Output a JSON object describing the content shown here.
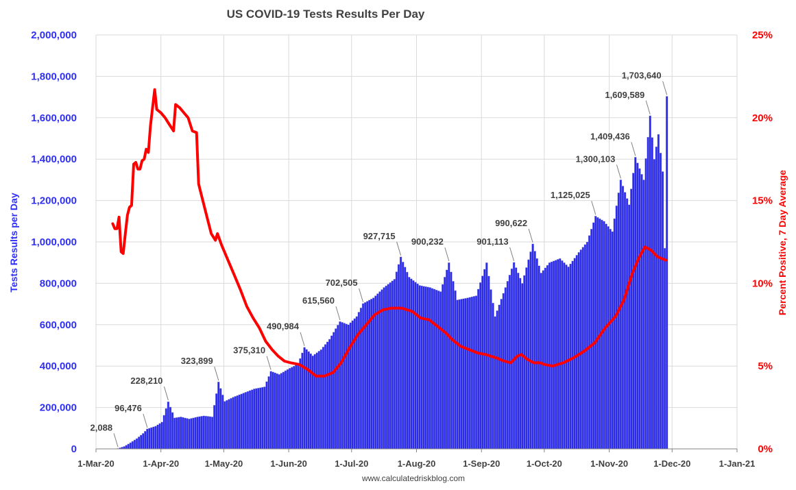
{
  "chart_data": {
    "type": "bar",
    "title": "US COVID-19 Tests Results Per Day",
    "ylabel": "Tests Results per Day",
    "y2label": "Percent Positive, 7 Day Average",
    "source": "www.calculatedriskblog.com",
    "xlim": [
      "2020-03-01",
      "2021-01-01"
    ],
    "ylim": [
      0,
      2000000
    ],
    "y2lim": [
      0,
      25
    ],
    "grid": true,
    "legend": "none",
    "colors": {
      "bars": "#2b2bf0",
      "bar_edge": "#b8b8c8",
      "line": "#ff0000",
      "left_axis": "#2f2ff5",
      "right_axis": "#ff0000",
      "grid": "#d9d9d9"
    },
    "x_ticks": [
      "1-Mar-20",
      "1-Apr-20",
      "1-May-20",
      "1-Jun-20",
      "1-Jul-20",
      "1-Aug-20",
      "1-Sep-20",
      "1-Oct-20",
      "1-Nov-20",
      "1-Dec-20",
      "1-Jan-21"
    ],
    "x_tick_dates": [
      "2020-03-01",
      "2020-04-01",
      "2020-05-01",
      "2020-06-01",
      "2020-07-01",
      "2020-08-01",
      "2020-09-01",
      "2020-10-01",
      "2020-11-01",
      "2020-12-01",
      "2021-01-01"
    ],
    "y_ticks": [
      "0",
      "200,000",
      "400,000",
      "600,000",
      "800,000",
      "1,000,000",
      "1,200,000",
      "1,400,000",
      "1,600,000",
      "1,800,000",
      "2,000,000"
    ],
    "y_tick_values": [
      0,
      200000,
      400000,
      600000,
      800000,
      1000000,
      1200000,
      1400000,
      1600000,
      1800000,
      2000000
    ],
    "y2_ticks": [
      "0%",
      "5%",
      "10%",
      "15%",
      "20%",
      "25%"
    ],
    "y2_tick_values": [
      0,
      5,
      10,
      15,
      20,
      25
    ],
    "bar_anchors": [
      [
        "2020-03-11",
        2088
      ],
      [
        "2020-03-14",
        12000
      ],
      [
        "2020-03-17",
        30000
      ],
      [
        "2020-03-20",
        50000
      ],
      [
        "2020-03-23",
        75000
      ],
      [
        "2020-03-25",
        96476
      ],
      [
        "2020-03-29",
        110000
      ],
      [
        "2020-04-01",
        130000
      ],
      [
        "2020-04-04",
        228210
      ],
      [
        "2020-04-07",
        150000
      ],
      [
        "2020-04-10",
        155000
      ],
      [
        "2020-04-14",
        145000
      ],
      [
        "2020-04-18",
        155000
      ],
      [
        "2020-04-21",
        160000
      ],
      [
        "2020-04-25",
        155000
      ],
      [
        "2020-04-28",
        323899
      ],
      [
        "2020-05-01",
        230000
      ],
      [
        "2020-05-05",
        250000
      ],
      [
        "2020-05-10",
        270000
      ],
      [
        "2020-05-15",
        290000
      ],
      [
        "2020-05-20",
        300000
      ],
      [
        "2020-05-23",
        375310
      ],
      [
        "2020-05-27",
        360000
      ],
      [
        "2020-06-01",
        390000
      ],
      [
        "2020-06-05",
        410000
      ],
      [
        "2020-06-08",
        490984
      ],
      [
        "2020-06-12",
        450000
      ],
      [
        "2020-06-16",
        480000
      ],
      [
        "2020-06-20",
        530000
      ],
      [
        "2020-06-25",
        615560
      ],
      [
        "2020-06-29",
        600000
      ],
      [
        "2020-07-03",
        640000
      ],
      [
        "2020-07-06",
        702505
      ],
      [
        "2020-07-11",
        730000
      ],
      [
        "2020-07-16",
        780000
      ],
      [
        "2020-07-21",
        820000
      ],
      [
        "2020-07-24",
        927715
      ],
      [
        "2020-07-28",
        830000
      ],
      [
        "2020-08-02",
        790000
      ],
      [
        "2020-08-07",
        780000
      ],
      [
        "2020-08-12",
        760000
      ],
      [
        "2020-08-16",
        900232
      ],
      [
        "2020-08-20",
        720000
      ],
      [
        "2020-08-25",
        730000
      ],
      [
        "2020-08-29",
        740000
      ],
      [
        "2020-09-03",
        900000
      ],
      [
        "2020-09-07",
        640000
      ],
      [
        "2020-09-12",
        780000
      ],
      [
        "2020-09-16",
        901113
      ],
      [
        "2020-09-20",
        800000
      ],
      [
        "2020-09-25",
        990622
      ],
      [
        "2020-09-29",
        850000
      ],
      [
        "2020-10-03",
        900000
      ],
      [
        "2020-10-08",
        920000
      ],
      [
        "2020-10-12",
        880000
      ],
      [
        "2020-10-17",
        950000
      ],
      [
        "2020-10-21",
        1000000
      ],
      [
        "2020-10-25",
        1125025
      ],
      [
        "2020-10-29",
        1100000
      ],
      [
        "2020-11-02",
        1050000
      ],
      [
        "2020-11-06",
        1300103
      ],
      [
        "2020-11-10",
        1180000
      ],
      [
        "2020-11-13",
        1409436
      ],
      [
        "2020-11-17",
        1300000
      ],
      [
        "2020-11-20",
        1609589
      ],
      [
        "2020-11-22",
        1400000
      ],
      [
        "2020-11-24",
        1520000
      ],
      [
        "2020-11-26",
        1340000
      ],
      [
        "2020-11-27",
        970000
      ],
      [
        "2020-11-28",
        1703640
      ]
    ],
    "percent_positive": [
      [
        "2020-03-09",
        13.6
      ],
      [
        "2020-03-10",
        13.3
      ],
      [
        "2020-03-11",
        13.3
      ],
      [
        "2020-03-12",
        14.0
      ],
      [
        "2020-03-13",
        11.9
      ],
      [
        "2020-03-14",
        11.8
      ],
      [
        "2020-03-15",
        13.0
      ],
      [
        "2020-03-16",
        14.1
      ],
      [
        "2020-03-17",
        14.6
      ],
      [
        "2020-03-18",
        14.7
      ],
      [
        "2020-03-19",
        17.2
      ],
      [
        "2020-03-20",
        17.3
      ],
      [
        "2020-03-21",
        16.9
      ],
      [
        "2020-03-22",
        16.9
      ],
      [
        "2020-03-23",
        17.4
      ],
      [
        "2020-03-24",
        17.5
      ],
      [
        "2020-03-25",
        18.1
      ],
      [
        "2020-03-26",
        17.9
      ],
      [
        "2020-03-27",
        19.5
      ],
      [
        "2020-03-28",
        20.6
      ],
      [
        "2020-03-29",
        21.7
      ],
      [
        "2020-03-30",
        20.5
      ],
      [
        "2020-04-01",
        20.3
      ],
      [
        "2020-04-03",
        20.0
      ],
      [
        "2020-04-05",
        19.6
      ],
      [
        "2020-04-07",
        19.2
      ],
      [
        "2020-04-08",
        20.8
      ],
      [
        "2020-04-10",
        20.6
      ],
      [
        "2020-04-12",
        20.3
      ],
      [
        "2020-04-14",
        20.0
      ],
      [
        "2020-04-16",
        19.2
      ],
      [
        "2020-04-18",
        19.1
      ],
      [
        "2020-04-19",
        16.0
      ],
      [
        "2020-04-21",
        15.0
      ],
      [
        "2020-04-23",
        14.0
      ],
      [
        "2020-04-25",
        13.0
      ],
      [
        "2020-04-27",
        12.6
      ],
      [
        "2020-04-28",
        13.0
      ],
      [
        "2020-04-30",
        12.3
      ],
      [
        "2020-05-03",
        11.4
      ],
      [
        "2020-05-06",
        10.5
      ],
      [
        "2020-05-09",
        9.6
      ],
      [
        "2020-05-12",
        8.6
      ],
      [
        "2020-05-15",
        7.9
      ],
      [
        "2020-05-18",
        7.3
      ],
      [
        "2020-05-21",
        6.5
      ],
      [
        "2020-05-24",
        6.0
      ],
      [
        "2020-05-27",
        5.6
      ],
      [
        "2020-05-30",
        5.3
      ],
      [
        "2020-06-02",
        5.2
      ],
      [
        "2020-06-06",
        5.1
      ],
      [
        "2020-06-10",
        4.8
      ],
      [
        "2020-06-14",
        4.4
      ],
      [
        "2020-06-18",
        4.4
      ],
      [
        "2020-06-22",
        4.6
      ],
      [
        "2020-06-26",
        5.2
      ],
      [
        "2020-06-30",
        6.1
      ],
      [
        "2020-07-04",
        6.9
      ],
      [
        "2020-07-08",
        7.5
      ],
      [
        "2020-07-12",
        8.1
      ],
      [
        "2020-07-16",
        8.4
      ],
      [
        "2020-07-20",
        8.5
      ],
      [
        "2020-07-25",
        8.5
      ],
      [
        "2020-07-30",
        8.3
      ],
      [
        "2020-08-03",
        7.9
      ],
      [
        "2020-08-07",
        7.8
      ],
      [
        "2020-08-11",
        7.4
      ],
      [
        "2020-08-15",
        7.0
      ],
      [
        "2020-08-18",
        6.6
      ],
      [
        "2020-08-22",
        6.2
      ],
      [
        "2020-08-26",
        6.0
      ],
      [
        "2020-08-30",
        5.8
      ],
      [
        "2020-09-03",
        5.7
      ],
      [
        "2020-09-08",
        5.5
      ],
      [
        "2020-09-12",
        5.3
      ],
      [
        "2020-09-15",
        5.2
      ],
      [
        "2020-09-18",
        5.6
      ],
      [
        "2020-09-20",
        5.7
      ],
      [
        "2020-09-23",
        5.4
      ],
      [
        "2020-09-26",
        5.2
      ],
      [
        "2020-09-29",
        5.2
      ],
      [
        "2020-10-01",
        5.1
      ],
      [
        "2020-10-05",
        5.0
      ],
      [
        "2020-10-10",
        5.2
      ],
      [
        "2020-10-15",
        5.5
      ],
      [
        "2020-10-20",
        5.9
      ],
      [
        "2020-10-25",
        6.4
      ],
      [
        "2020-10-30",
        7.3
      ],
      [
        "2020-11-04",
        8.0
      ],
      [
        "2020-11-08",
        9.0
      ],
      [
        "2020-11-12",
        10.6
      ],
      [
        "2020-11-15",
        11.5
      ],
      [
        "2020-11-18",
        12.2
      ],
      [
        "2020-11-21",
        12.0
      ],
      [
        "2020-11-24",
        11.6
      ],
      [
        "2020-11-28",
        11.4
      ]
    ],
    "annotations": [
      {
        "date": "2020-03-11",
        "value": 2088,
        "label": "2,088"
      },
      {
        "date": "2020-03-25",
        "value": 96476,
        "label": "96,476"
      },
      {
        "date": "2020-04-04",
        "value": 228210,
        "label": "228,210"
      },
      {
        "date": "2020-04-28",
        "value": 323899,
        "label": "323,899"
      },
      {
        "date": "2020-05-23",
        "value": 375310,
        "label": "375,310"
      },
      {
        "date": "2020-06-08",
        "value": 490984,
        "label": "490,984"
      },
      {
        "date": "2020-06-25",
        "value": 615560,
        "label": "615,560"
      },
      {
        "date": "2020-07-06",
        "value": 702505,
        "label": "702,505"
      },
      {
        "date": "2020-07-24",
        "value": 927715,
        "label": "927,715"
      },
      {
        "date": "2020-08-16",
        "value": 900232,
        "label": "900,232"
      },
      {
        "date": "2020-09-16",
        "value": 901113,
        "label": "901,113"
      },
      {
        "date": "2020-09-25",
        "value": 990622,
        "label": "990,622"
      },
      {
        "date": "2020-10-25",
        "value": 1125025,
        "label": "1,125,025"
      },
      {
        "date": "2020-11-06",
        "value": 1300103,
        "label": "1,300,103"
      },
      {
        "date": "2020-11-13",
        "value": 1409436,
        "label": "1,409,436"
      },
      {
        "date": "2020-11-20",
        "value": 1609589,
        "label": "1,609,589"
      },
      {
        "date": "2020-11-28",
        "value": 1703640,
        "label": "1,703,640"
      }
    ]
  }
}
